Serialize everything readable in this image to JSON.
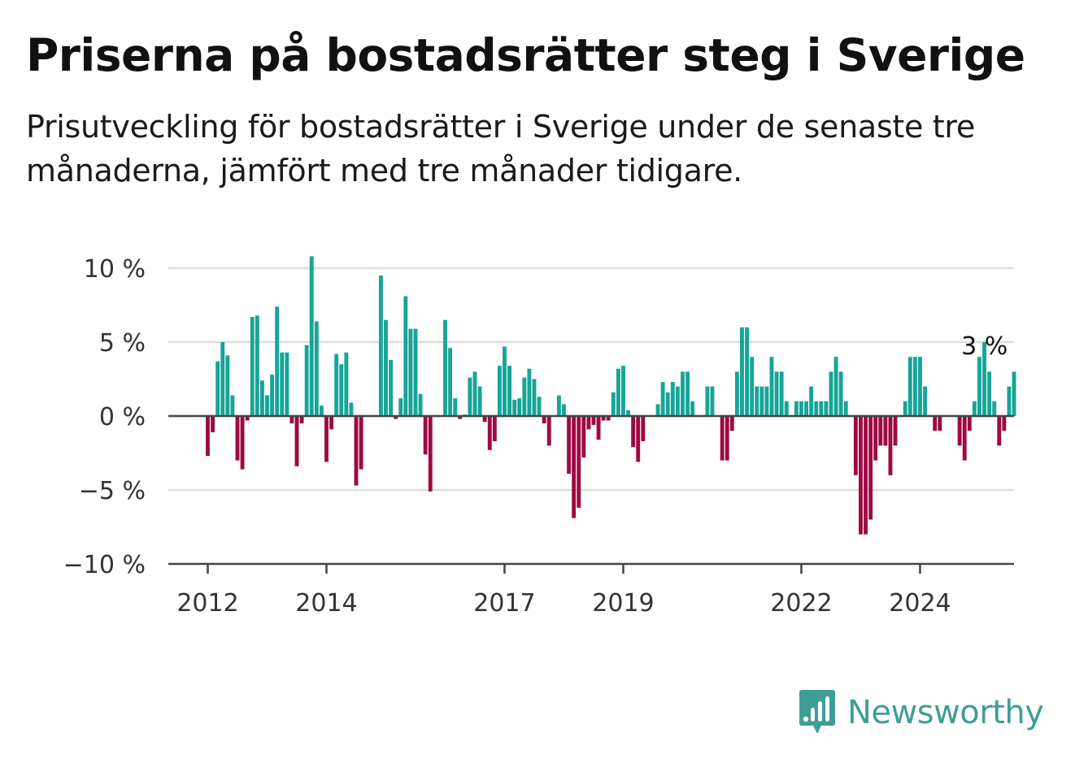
{
  "header": {
    "title": "Priserna på bostadsrätter steg i Sverige",
    "subtitle": "Prisutveckling för bostadsrätter i Sverige under de senaste tre månaderna, jämfört med tre månader tidigare."
  },
  "brand": {
    "name": "Newsworthy",
    "icon": "newsworthy-logo-icon",
    "color": "#3e9e95"
  },
  "colors": {
    "positive": "#16a597",
    "negative": "#9e0a43",
    "grid": "#dddddd",
    "axis": "#444444"
  },
  "chart_data": {
    "type": "bar",
    "title": "Priserna på bostadsrätter steg i Sverige",
    "subtitle": "Prisutveckling för bostadsrätter i Sverige under de senaste tre månaderna, jämfört med tre månader tidigare.",
    "ylim": [
      -10,
      11
    ],
    "yticks": [
      10,
      5,
      0,
      -5,
      -10
    ],
    "ytick_labels": [
      "10 %",
      "5 %",
      "0 %",
      "−5 %",
      "−10 %"
    ],
    "xticks": [
      2012,
      2014,
      2017,
      2019,
      2022,
      2024
    ],
    "x_start": "2012-01",
    "grid": true,
    "annotation": {
      "text": "3 %",
      "x": "2024-09",
      "value": 3
    },
    "values": [
      -2.7,
      -1.1,
      3.7,
      5.0,
      4.1,
      1.4,
      -3.0,
      -3.6,
      -0.3,
      6.7,
      6.8,
      2.4,
      1.4,
      2.8,
      7.4,
      4.3,
      4.3,
      -0.5,
      -3.4,
      -0.5,
      4.8,
      10.8,
      6.4,
      0.7,
      -3.1,
      -0.9,
      4.2,
      3.5,
      4.3,
      0.9,
      -4.7,
      -3.6,
      0,
      0,
      0,
      9.5,
      6.5,
      3.8,
      -0.2,
      1.2,
      8.1,
      5.9,
      5.9,
      1.5,
      -2.6,
      -5.1,
      0,
      0,
      6.5,
      4.6,
      1.2,
      -0.2,
      0.1,
      2.6,
      3.0,
      2.0,
      -0.4,
      -2.3,
      -1.7,
      3.4,
      4.7,
      3.4,
      1.1,
      1.2,
      2.6,
      3.2,
      2.5,
      1.3,
      -0.5,
      -2.0,
      0,
      1.4,
      0.8,
      -3.9,
      -6.9,
      -6.2,
      -2.8,
      -0.9,
      -0.6,
      -1.6,
      -0.3,
      -0.3,
      1.6,
      3.2,
      3.4,
      0.4,
      -2.1,
      -3.1,
      -1.7,
      0,
      0,
      0.8,
      2.3,
      1.6,
      2.3,
      2.0,
      3.0,
      3.0,
      1.0,
      0,
      0,
      2.0,
      2.0,
      0,
      -3.0,
      -3.0,
      -1.0,
      3.0,
      6.0,
      6.0,
      4.0,
      2.0,
      2.0,
      2.0,
      4.0,
      3.0,
      3.0,
      1.0,
      0,
      1.0,
      1.0,
      1.0,
      2.0,
      1.0,
      1.0,
      1.0,
      3.0,
      4.0,
      3.0,
      1.0,
      0,
      -4.0,
      -8.0,
      -8.0,
      -7.0,
      -3.0,
      -2.0,
      -2.0,
      -4.0,
      -2.0,
      0,
      1.0,
      4.0,
      4.0,
      4.0,
      2.0,
      0,
      -1.0,
      -1.0,
      0,
      0,
      0,
      -2.0,
      -3.0,
      -1.0,
      1.0,
      4.0,
      5.0,
      3.0,
      1.0,
      -2.0,
      -1.0,
      2.0,
      3.0
    ]
  }
}
